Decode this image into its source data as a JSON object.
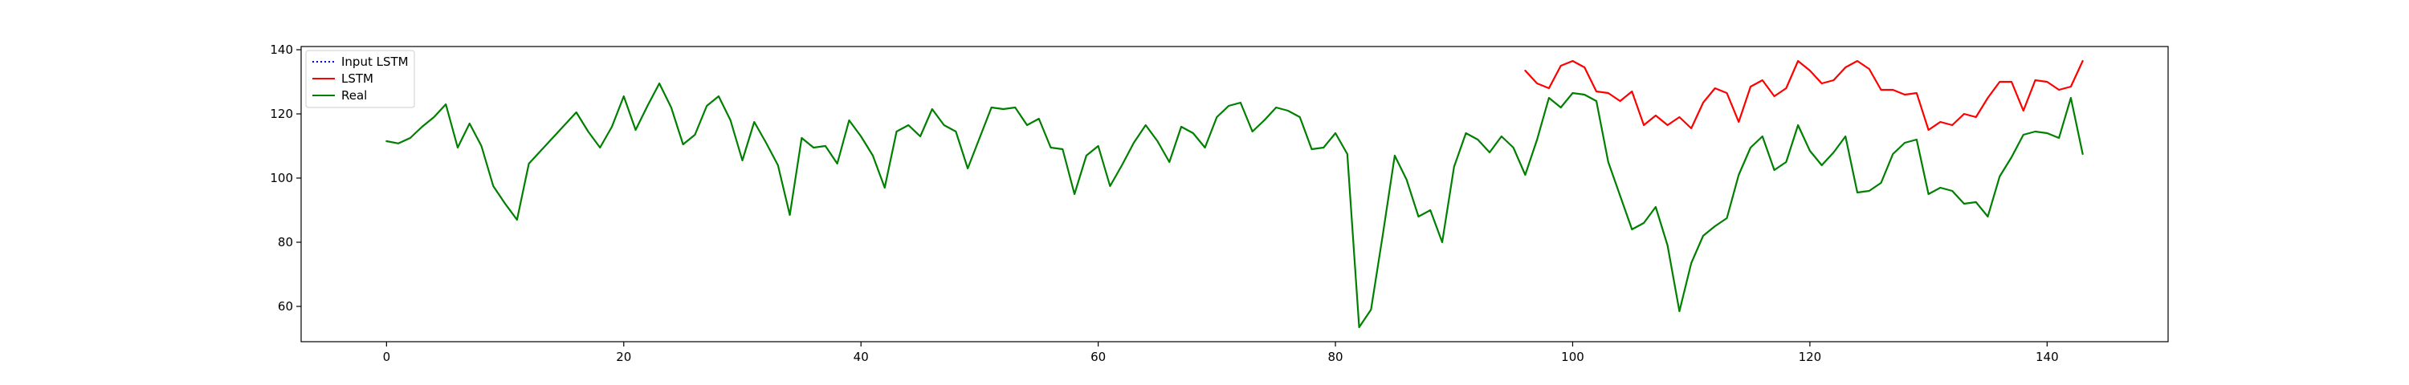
{
  "chart_data": {
    "type": "line",
    "title": "",
    "xlabel": "",
    "ylabel": "",
    "xlim": [
      -7.2,
      150.2
    ],
    "ylim": [
      49,
      141
    ],
    "xticks": [
      0,
      20,
      40,
      60,
      80,
      100,
      120,
      140
    ],
    "yticks": [
      60,
      80,
      100,
      120,
      140
    ],
    "grid": false,
    "legend": {
      "position": "top-left",
      "entries": [
        {
          "label": "Input LSTM",
          "color": "#0000ff",
          "style": "dotted"
        },
        {
          "label": "LSTM",
          "color": "#ff0000",
          "style": "solid"
        },
        {
          "label": "Real",
          "color": "#008000",
          "style": "solid"
        }
      ]
    },
    "series": [
      {
        "name": "Input LSTM",
        "color": "#0000ff",
        "style": "dotted",
        "x_start": 0,
        "values": []
      },
      {
        "name": "LSTM",
        "color": "#ff0000",
        "style": "solid",
        "x_start": 96,
        "values": [
          133.5,
          129.5,
          128,
          135,
          136.5,
          134.5,
          127,
          126.5,
          124,
          127,
          116.5,
          119.5,
          116.5,
          119,
          115.5,
          123.5,
          128,
          126.5,
          117.5,
          128.5,
          130.5,
          125.5,
          128,
          136.5,
          133.5,
          129.5,
          130.5,
          134.5,
          136.5,
          134,
          127.5,
          127.5,
          126,
          126.5,
          115,
          117.5,
          116.5,
          120,
          119,
          125,
          130,
          130,
          121,
          130.5,
          130,
          127.5,
          128.5,
          136.5
        ]
      },
      {
        "name": "Real",
        "color": "#008000",
        "style": "solid",
        "x_start": 0,
        "values": [
          111.5,
          110.8,
          112.5,
          116,
          119,
          123,
          109.5,
          117,
          110,
          97.5,
          92,
          87,
          104.5,
          108.5,
          112.5,
          116.5,
          120.5,
          114.5,
          109.5,
          116,
          125.5,
          115,
          122.5,
          129.5,
          122,
          110.5,
          113.5,
          122.5,
          125.5,
          118,
          105.5,
          117.5,
          111,
          104,
          88.5,
          112.5,
          109.5,
          110,
          104.5,
          118,
          113,
          107,
          97,
          114.5,
          116.5,
          113,
          121.5,
          116.5,
          114.5,
          103,
          112.5,
          122,
          121.5,
          122,
          116.5,
          118.5,
          109.5,
          109,
          95,
          107,
          110,
          97.5,
          104,
          111,
          116.5,
          111.5,
          105,
          116,
          114,
          109.5,
          119,
          122.5,
          123.5,
          114.5,
          118,
          122,
          121,
          119,
          109,
          109.5,
          114,
          107.5,
          53.5,
          59,
          82.5,
          107,
          99.5,
          88,
          90,
          80,
          103.5,
          114,
          112,
          108,
          113,
          109.5,
          101,
          112,
          125,
          122,
          126.5,
          126,
          124,
          105,
          94.5,
          84,
          86,
          91,
          79,
          58.5,
          73.5,
          82,
          85,
          87.5,
          101,
          109.5,
          113,
          102.5,
          105,
          116.5,
          108.5,
          104,
          108,
          113,
          95.5,
          96,
          98.5,
          107.5,
          111,
          112,
          95,
          97,
          96,
          92,
          92.5,
          88,
          100.5,
          106.5,
          113.5,
          114.5,
          114,
          112.5,
          125,
          107.5
        ]
      }
    ]
  }
}
